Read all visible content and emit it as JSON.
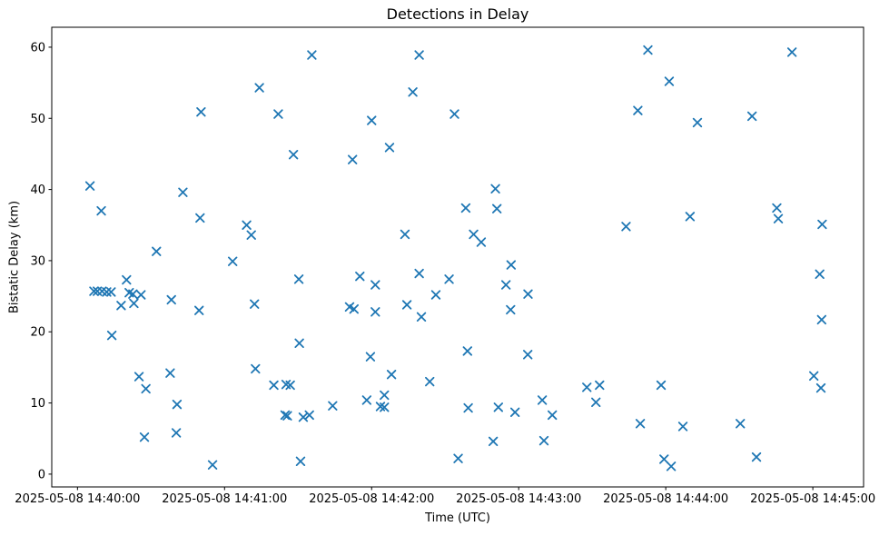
{
  "window": {
    "background_color": "#ffffff"
  },
  "chart_data": {
    "type": "scatter",
    "title": "Detections in Delay",
    "xlabel": "Time (UTC)",
    "ylabel": "Bistatic Delay (km)",
    "marker": "x",
    "marker_color": "#1f77b4",
    "spine_color": "#000000",
    "text_color": "#000000",
    "grid": "off",
    "legend": "none",
    "x_base": "2025-05-08 14:40:00 UTC",
    "x_unit": "seconds since x_base",
    "x_tick_labels": [
      "2025-05-08 14:40:00",
      "2025-05-08 14:41:00",
      "2025-05-08 14:42:00",
      "2025-05-08 14:43:00",
      "2025-05-08 14:44:00",
      "2025-05-08 14:45:00"
    ],
    "x_tick_seconds": [
      0,
      60,
      120,
      180,
      240,
      300
    ],
    "y_tick_labels": [
      "0",
      "10",
      "20",
      "30",
      "40",
      "50",
      "60"
    ],
    "y_ticks": [
      0,
      10,
      20,
      30,
      40,
      50,
      60
    ],
    "xlim_seconds": [
      -10.5,
      320.7
    ],
    "ylim": [
      -1.8,
      62.8
    ],
    "points_format": [
      "t_seconds",
      "bistatic_delay_km"
    ],
    "points": [
      [
        5.1,
        40.5
      ],
      [
        6.7,
        25.7
      ],
      [
        8.1,
        25.7
      ],
      [
        9.7,
        37.0
      ],
      [
        10.0,
        25.7
      ],
      [
        11.9,
        25.6
      ],
      [
        13.7,
        25.6
      ],
      [
        14.0,
        19.5
      ],
      [
        17.8,
        23.7
      ],
      [
        20.0,
        27.3
      ],
      [
        21.1,
        25.5
      ],
      [
        22.6,
        25.3
      ],
      [
        23.0,
        24.0
      ],
      [
        25.1,
        13.7
      ],
      [
        25.9,
        25.2
      ],
      [
        27.3,
        5.2
      ],
      [
        27.9,
        12.0
      ],
      [
        32.2,
        31.3
      ],
      [
        37.8,
        14.2
      ],
      [
        38.3,
        24.5
      ],
      [
        40.3,
        5.8
      ],
      [
        40.6,
        9.8
      ],
      [
        43.0,
        39.6
      ],
      [
        49.6,
        23.0
      ],
      [
        50.0,
        36.0
      ],
      [
        50.4,
        50.9
      ],
      [
        55.1,
        1.3
      ],
      [
        63.3,
        29.9
      ],
      [
        69.0,
        35.0
      ],
      [
        70.9,
        33.6
      ],
      [
        72.2,
        23.9
      ],
      [
        72.6,
        14.8
      ],
      [
        74.2,
        54.3
      ],
      [
        80.1,
        12.5
      ],
      [
        81.9,
        50.6
      ],
      [
        84.7,
        8.3
      ],
      [
        85.1,
        12.6
      ],
      [
        85.6,
        8.2
      ],
      [
        86.8,
        12.5
      ],
      [
        88.1,
        44.9
      ],
      [
        90.3,
        27.4
      ],
      [
        90.5,
        18.4
      ],
      [
        91.0,
        1.8
      ],
      [
        92.1,
        8.0
      ],
      [
        94.6,
        8.3
      ],
      [
        95.6,
        58.9
      ],
      [
        104.1,
        9.6
      ],
      [
        111.0,
        23.5
      ],
      [
        112.2,
        44.2
      ],
      [
        112.8,
        23.2
      ],
      [
        115.2,
        27.8
      ],
      [
        118.0,
        10.4
      ],
      [
        119.5,
        16.5
      ],
      [
        120.0,
        49.7
      ],
      [
        121.5,
        26.6
      ],
      [
        121.5,
        22.8
      ],
      [
        123.6,
        9.5
      ],
      [
        125.2,
        11.1
      ],
      [
        125.2,
        9.4
      ],
      [
        127.3,
        45.9
      ],
      [
        128.1,
        14.0
      ],
      [
        133.6,
        33.7
      ],
      [
        134.4,
        23.8
      ],
      [
        136.8,
        53.7
      ],
      [
        139.4,
        58.9
      ],
      [
        139.4,
        28.2
      ],
      [
        140.3,
        22.1
      ],
      [
        143.7,
        13.0
      ],
      [
        146.2,
        25.2
      ],
      [
        151.6,
        27.4
      ],
      [
        153.8,
        50.6
      ],
      [
        155.3,
        2.2
      ],
      [
        158.4,
        37.4
      ],
      [
        159.1,
        17.3
      ],
      [
        159.4,
        9.3
      ],
      [
        161.6,
        33.7
      ],
      [
        164.7,
        32.6
      ],
      [
        169.6,
        4.6
      ],
      [
        170.5,
        40.1
      ],
      [
        171.1,
        37.3
      ],
      [
        171.7,
        9.4
      ],
      [
        174.8,
        26.6
      ],
      [
        176.7,
        23.1
      ],
      [
        176.9,
        29.4
      ],
      [
        178.5,
        8.7
      ],
      [
        183.7,
        16.8
      ],
      [
        183.8,
        25.3
      ],
      [
        189.6,
        10.4
      ],
      [
        190.3,
        4.7
      ],
      [
        193.7,
        8.3
      ],
      [
        207.8,
        12.2
      ],
      [
        211.5,
        10.1
      ],
      [
        213.0,
        12.5
      ],
      [
        223.8,
        34.8
      ],
      [
        228.6,
        51.1
      ],
      [
        229.6,
        7.1
      ],
      [
        232.7,
        59.6
      ],
      [
        238.1,
        12.5
      ],
      [
        239.3,
        2.1
      ],
      [
        241.4,
        55.2
      ],
      [
        242.2,
        1.1
      ],
      [
        247.0,
        6.7
      ],
      [
        249.9,
        36.2
      ],
      [
        252.9,
        49.4
      ],
      [
        270.4,
        7.1
      ],
      [
        275.2,
        50.3
      ],
      [
        277.0,
        2.4
      ],
      [
        285.3,
        37.4
      ],
      [
        285.9,
        35.9
      ],
      [
        291.5,
        59.3
      ],
      [
        300.4,
        13.8
      ],
      [
        302.8,
        28.1
      ],
      [
        303.3,
        12.1
      ],
      [
        303.6,
        21.7
      ],
      [
        303.8,
        35.1
      ]
    ]
  }
}
